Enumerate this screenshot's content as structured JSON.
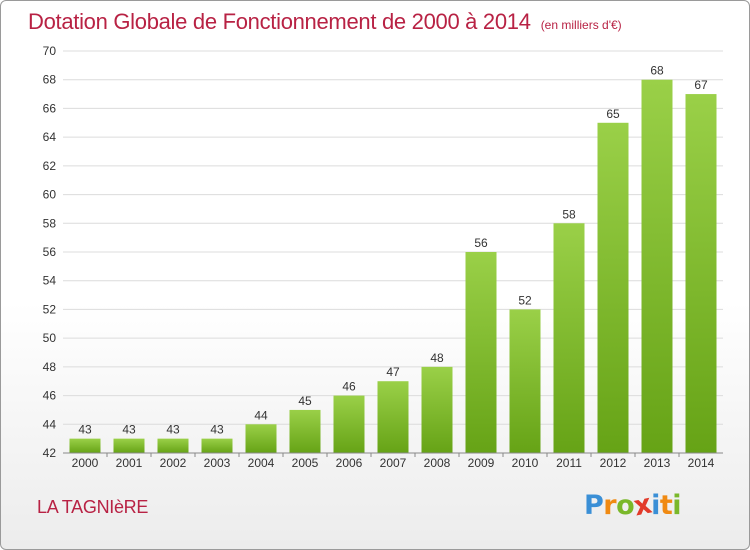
{
  "chart_data": {
    "type": "bar",
    "title": "Dotation Globale de Fonctionnement de 2000 à 2014",
    "unit_label": "(en milliers d'€)",
    "categories": [
      "2000",
      "2001",
      "2002",
      "2003",
      "2004",
      "2005",
      "2006",
      "2007",
      "2008",
      "2009",
      "2010",
      "2011",
      "2012",
      "2013",
      "2014"
    ],
    "values": [
      43,
      43,
      43,
      43,
      44,
      45,
      46,
      47,
      48,
      56,
      52,
      58,
      65,
      68,
      67
    ],
    "ylim": [
      42,
      70
    ],
    "yticks": [
      42,
      44,
      46,
      48,
      50,
      52,
      54,
      56,
      58,
      60,
      62,
      64,
      66,
      68,
      70
    ],
    "grid": true,
    "colors": {
      "bar_light": "#9ad048",
      "bar_dark": "#66a316",
      "title": "#b82244",
      "grid": "#dcdcdc"
    }
  },
  "footer": {
    "commune": "LA TAGNIèRE",
    "logo_letters": [
      "P",
      "r",
      "o",
      "x",
      "i",
      "t",
      "i"
    ],
    "logo_colors": [
      "#3a8fd6",
      "#f08a12",
      "#7ab82a",
      "#e23a2a",
      "#3a8fd6",
      "#f08a12",
      "#7ab82a"
    ]
  }
}
